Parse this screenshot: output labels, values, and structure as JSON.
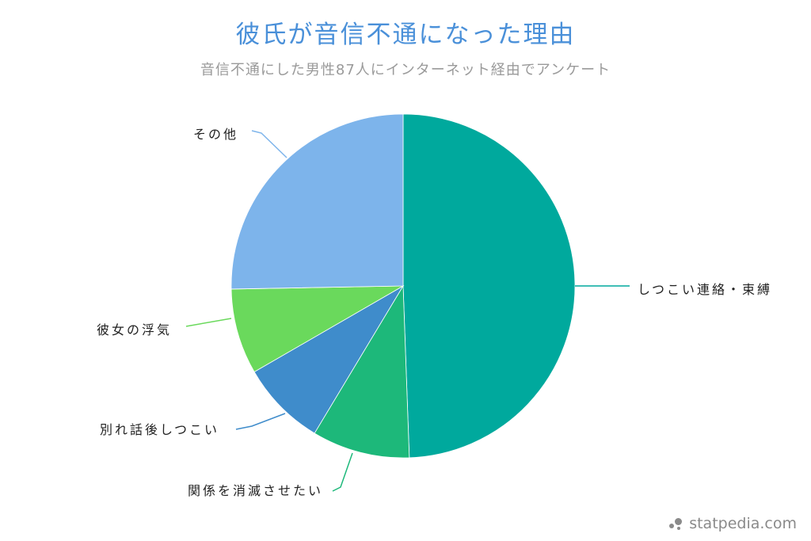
{
  "header": {
    "title": "彼氏が音信不通になった理由",
    "subtitle": "音信不通にした男性87人にインターネット経由でアンケート"
  },
  "footer": {
    "brand": "statpedia.com",
    "brand_icon": "dots-logo-icon"
  },
  "colors": {
    "title": "#4a90d9",
    "subtitle": "#9a9a9a",
    "slices": [
      "#00a99d",
      "#1db87a",
      "#3f8ccb",
      "#6ad95c",
      "#7db4eb"
    ]
  },
  "chart_data": {
    "type": "pie",
    "title": "彼氏が音信不通になった理由",
    "subtitle": "音信不通にした男性87人にインターネット経由でアンケート",
    "categories": [
      "しつこい連絡・束縛",
      "関係を消滅させたい",
      "別れ話後しつこい",
      "彼女の浮気",
      "その他"
    ],
    "values": [
      43,
      8,
      7,
      7,
      22
    ],
    "percentages_estimated": [
      49.4,
      9.2,
      8.0,
      8.0,
      25.3
    ],
    "start_angle": "12 o'clock, clockwise",
    "legend": "none (leader-line labels)"
  },
  "labels": {
    "slice0": "しつこい連絡・束縛",
    "slice1": "関係を消滅させたい",
    "slice2": "別れ話後しつこい",
    "slice3": "彼女の浮気",
    "slice4": "その他"
  }
}
